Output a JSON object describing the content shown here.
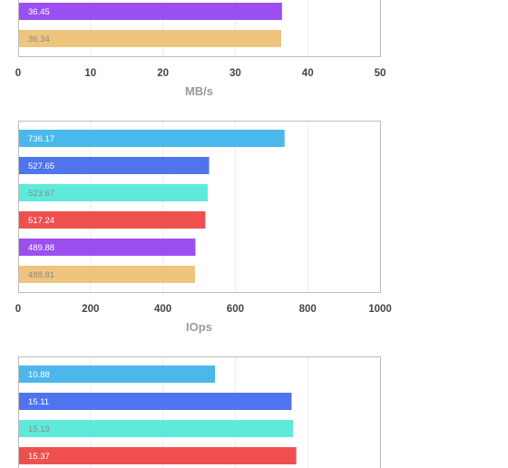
{
  "chart_data": [
    {
      "type": "bar",
      "orientation": "horizontal",
      "xlabel": "MB/s",
      "xlim": [
        0,
        50
      ],
      "ticks": [
        0,
        10,
        20,
        30,
        40,
        50
      ],
      "grid": true,
      "bars": [
        {
          "value": 36.45,
          "label": "36.45",
          "color": "#9b4ff0"
        },
        {
          "value": 36.34,
          "label": "36.34",
          "color": "#efc47d"
        }
      ]
    },
    {
      "type": "bar",
      "orientation": "horizontal",
      "xlabel": "IOps",
      "xlim": [
        0,
        1000
      ],
      "ticks": [
        0,
        200,
        400,
        600,
        800,
        1000
      ],
      "grid": true,
      "bars": [
        {
          "value": 736.17,
          "label": "736.17",
          "color": "#4bb8ec"
        },
        {
          "value": 527.65,
          "label": "527.65",
          "color": "#4f74ee"
        },
        {
          "value": 523.67,
          "label": "523.67",
          "color": "#5eeadb"
        },
        {
          "value": 517.24,
          "label": "517.24",
          "color": "#ee5050"
        },
        {
          "value": 489.88,
          "label": "489.88",
          "color": "#9b4ff0"
        },
        {
          "value": 488.81,
          "label": "488.81",
          "color": "#efc47d"
        }
      ]
    },
    {
      "type": "bar",
      "orientation": "horizontal",
      "xlabel": "",
      "xlim": [
        0,
        20
      ],
      "ticks": [],
      "grid": true,
      "bars": [
        {
          "value": 10.88,
          "label": "10.88",
          "color": "#4bb8ec"
        },
        {
          "value": 15.11,
          "label": "15.11",
          "color": "#4f74ee"
        },
        {
          "value": 15.19,
          "label": "15.19",
          "color": "#5eeadb"
        },
        {
          "value": 15.37,
          "label": "15.37",
          "color": "#ee5050"
        }
      ]
    }
  ]
}
